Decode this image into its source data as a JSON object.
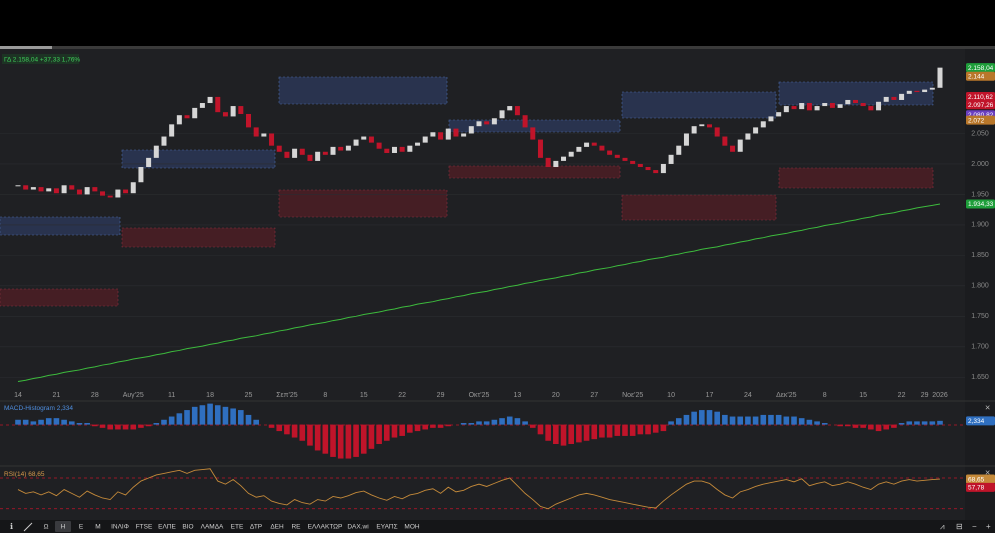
{
  "chart_data": [
    {
      "type": "candlestick",
      "categories": [
        "14",
        null,
        null,
        null,
        null,
        "21",
        null,
        null,
        null,
        null,
        "28",
        null,
        null,
        null,
        null,
        "Αυγ'25",
        null,
        null,
        null,
        null,
        "11",
        null,
        null,
        null,
        null,
        "18",
        null,
        null,
        null,
        null,
        "25",
        null,
        null,
        null,
        null,
        "Σεπ'25",
        null,
        null,
        null,
        null,
        "8",
        null,
        null,
        null,
        null,
        "15",
        null,
        null,
        null,
        null,
        "22",
        null,
        null,
        null,
        null,
        "29",
        null,
        null,
        null,
        null,
        "Οκτ'25",
        null,
        null,
        null,
        null,
        "13",
        null,
        null,
        null,
        null,
        "20",
        null,
        null,
        null,
        null,
        "27",
        null,
        null,
        null,
        null,
        "Νοε'25",
        null,
        null,
        null,
        null,
        "10",
        null,
        null,
        null,
        null,
        "17",
        null,
        null,
        null,
        null,
        "24",
        null,
        null,
        null,
        null,
        "Δεκ'25",
        null,
        null,
        null,
        null,
        "8",
        null,
        null,
        null,
        null,
        "15",
        null,
        null,
        null,
        null,
        "22",
        null,
        null,
        "29",
        null,
        "2026"
      ],
      "series": [
        {
          "name": "ΓΔ",
          "up_color": "#d6d6d6",
          "down_color": "#c0142a",
          "values": [
            1965,
            1958,
            1962,
            1955,
            1960,
            1952,
            1965,
            1958,
            1950,
            1962,
            1955,
            1948,
            1945,
            1958,
            1952,
            1970,
            1995,
            2010,
            2030,
            2045,
            2065,
            2080,
            2075,
            2092,
            2100,
            2110,
            2085,
            2078,
            2095,
            2082,
            2060,
            2045,
            2050,
            2030,
            2020,
            2010,
            2025,
            2015,
            2005,
            2020,
            2015,
            2028,
            2022,
            2030,
            2040,
            2045,
            2035,
            2025,
            2018,
            2028,
            2020,
            2030,
            2035,
            2045,
            2052,
            2040,
            2058,
            2045,
            2050,
            2062,
            2070,
            2065,
            2075,
            2088,
            2095,
            2080,
            2060,
            2040,
            2010,
            1995,
            2005,
            2012,
            2020,
            2028,
            2035,
            2030,
            2022,
            2015,
            2010,
            2005,
            2000,
            1995,
            1990,
            1985,
            2000,
            2015,
            2030,
            2050,
            2062,
            2065,
            2060,
            2045,
            2030,
            2020,
            2040,
            2050,
            2060,
            2070,
            2078,
            2085,
            2095,
            2090,
            2100,
            2088,
            2095,
            2100,
            2092,
            2098,
            2105,
            2100,
            2095,
            2088,
            2102,
            2110,
            2105,
            2115,
            2120,
            2118,
            2122,
            2125,
            2158.04
          ]
        },
        {
          "color": "#3dbb3d",
          "values": [
            1643,
            1645,
            1648,
            1650,
            1653,
            1655,
            1658,
            1660,
            1662,
            1665,
            1667,
            1670,
            1672,
            1675,
            1677,
            1680,
            1682,
            1684,
            1687,
            1689,
            1692,
            1694,
            1697,
            1699,
            1701,
            1704,
            1706,
            1709,
            1711,
            1714,
            1716,
            1718,
            1721,
            1723,
            1726,
            1728,
            1731,
            1733,
            1736,
            1738,
            1740,
            1743,
            1745,
            1748,
            1750,
            1753,
            1755,
            1757,
            1760,
            1762,
            1765,
            1767,
            1770,
            1772,
            1774,
            1777,
            1779,
            1782,
            1784,
            1787,
            1789,
            1791,
            1794,
            1796,
            1799,
            1801,
            1804,
            1806,
            1809,
            1811,
            1813,
            1816,
            1818,
            1821,
            1823,
            1826,
            1828,
            1830,
            1833,
            1835,
            1838,
            1840,
            1843,
            1845,
            1847,
            1850,
            1852,
            1855,
            1857,
            1860,
            1862,
            1864,
            1867,
            1869,
            1872,
            1874,
            1877,
            1879,
            1882,
            1884,
            1886,
            1889,
            1891,
            1894,
            1896,
            1899,
            1901,
            1903,
            1906,
            1908,
            1911,
            1913,
            1916,
            1918,
            1920,
            1923,
            1925,
            1928,
            1930,
            1932,
            1934.33
          ]
        }
      ],
      "ylim": [
        1634,
        2187
      ],
      "yticks": [
        {
          "value": 1650,
          "label": "1.650"
        },
        {
          "value": 1700,
          "label": "1.700"
        },
        {
          "value": 1750,
          "label": "1.750"
        },
        {
          "value": 1800,
          "label": "1.800"
        },
        {
          "value": 1850,
          "label": "1.850"
        },
        {
          "value": 1900,
          "label": "1.900"
        },
        {
          "value": 1950,
          "label": "1.950"
        },
        {
          "value": 2000,
          "label": "2.000"
        },
        {
          "value": 2050,
          "label": "2.050"
        }
      ],
      "grid": true,
      "change": "+37,33",
      "change_pct": "1,76%",
      "price_tags": [
        {
          "value": 2158.04,
          "label": "2.158,04",
          "color": "#1e9e3a"
        },
        {
          "value": 2144,
          "label": "2.144",
          "color": "#b9772a"
        },
        {
          "value": 2110.62,
          "label": "2.110,62",
          "color": "#c0142a"
        },
        {
          "value": 2097.26,
          "label": "2.097,26",
          "color": "#c0142a"
        },
        {
          "value": 2080.82,
          "label": "2.080,82",
          "color": "#6a3fc0"
        },
        {
          "value": 2072,
          "label": "2.072",
          "color": "#b9772a"
        },
        {
          "value": 1934.33,
          "label": "1.934,33",
          "color": "#1e9e3a"
        }
      ]
    },
    {
      "type": "bar",
      "series": [
        {
          "name": "MACD-Histogram",
          "up_color": "#2f6fc0",
          "down_color": "#c0142a",
          "values": [
            3,
            3,
            2,
            3,
            4,
            4,
            3,
            2,
            1,
            1,
            -1,
            -2,
            -3,
            -3,
            -3,
            -3,
            -2,
            -1,
            1,
            3,
            5,
            7,
            9,
            11,
            12,
            13,
            12,
            11,
            10,
            9,
            6,
            3,
            0,
            -2,
            -4,
            -6,
            -8,
            -10,
            -13,
            -16,
            -18,
            -20,
            -21,
            -21,
            -20,
            -18,
            -15,
            -12,
            -10,
            -8,
            -7,
            -5,
            -4,
            -3,
            -2,
            -2,
            -1,
            0,
            1,
            1,
            2,
            2,
            3,
            4,
            5,
            4,
            2,
            -2,
            -6,
            -10,
            -12,
            -13,
            -12,
            -11,
            -10,
            -9,
            -8,
            -8,
            -7,
            -7,
            -7,
            -6,
            -6,
            -5,
            -4,
            2,
            4,
            6,
            8,
            9,
            9,
            8,
            6,
            5,
            5,
            5,
            5,
            6,
            6,
            6,
            5,
            5,
            4,
            3,
            2,
            1,
            0,
            -1,
            -1,
            -2,
            -2,
            -3,
            -4,
            -3,
            -2,
            1,
            2,
            2,
            2,
            2,
            2.334
          ]
        }
      ],
      "ylim": [
        -25,
        14
      ],
      "price_tags": [
        {
          "value": 2.334,
          "label": "2,334",
          "color": "#2f6fc0"
        }
      ]
    },
    {
      "type": "line",
      "series": [
        {
          "name": "RSI(14)",
          "color": "#c58a3a",
          "values": [
            55,
            50,
            52,
            48,
            52,
            47,
            55,
            50,
            45,
            53,
            48,
            44,
            42,
            52,
            48,
            58,
            66,
            70,
            74,
            76,
            78,
            80,
            76,
            80,
            81,
            82,
            66,
            62,
            68,
            60,
            50,
            45,
            47,
            40,
            37,
            35,
            42,
            38,
            36,
            42,
            40,
            46,
            44,
            47,
            51,
            53,
            48,
            44,
            41,
            46,
            43,
            48,
            50,
            54,
            56,
            50,
            58,
            52,
            54,
            59,
            62,
            59,
            63,
            67,
            70,
            60,
            50,
            42,
            33,
            30,
            36,
            40,
            44,
            48,
            50,
            48,
            45,
            42,
            40,
            38,
            36,
            34,
            32,
            31,
            40,
            48,
            55,
            62,
            66,
            66,
            63,
            55,
            48,
            44,
            52,
            55,
            59,
            62,
            64,
            66,
            68,
            65,
            69,
            60,
            63,
            65,
            60,
            62,
            65,
            62,
            58,
            55,
            62,
            65,
            62,
            66,
            68,
            66,
            67,
            68,
            68.65
          ]
        }
      ],
      "ylim": [
        18,
        83
      ],
      "levels": [
        70,
        30
      ],
      "price_tags": [
        {
          "value": 68.65,
          "label": "68,65",
          "color": "#c58a3a"
        },
        {
          "value": 57.78,
          "label": "57,78",
          "color": "#c0142a"
        }
      ]
    }
  ],
  "toolbar": {
    "items": [
      "Ω",
      "Η",
      "Ε",
      "Μ",
      "ΙΝΛΙΦ",
      "FTSE",
      "ΕΛΠΕ",
      "ΒΙΟ",
      "ΛΑΜΔΑ",
      "ΕΤΕ",
      "ΔΤΡ",
      "ΔΕΗ",
      "RE",
      "ΕΛΛΑΚΤΩΡ",
      "DAX.wi",
      "ΕΥΑΠΣ",
      "ΜΟΗ"
    ],
    "active": 1
  }
}
